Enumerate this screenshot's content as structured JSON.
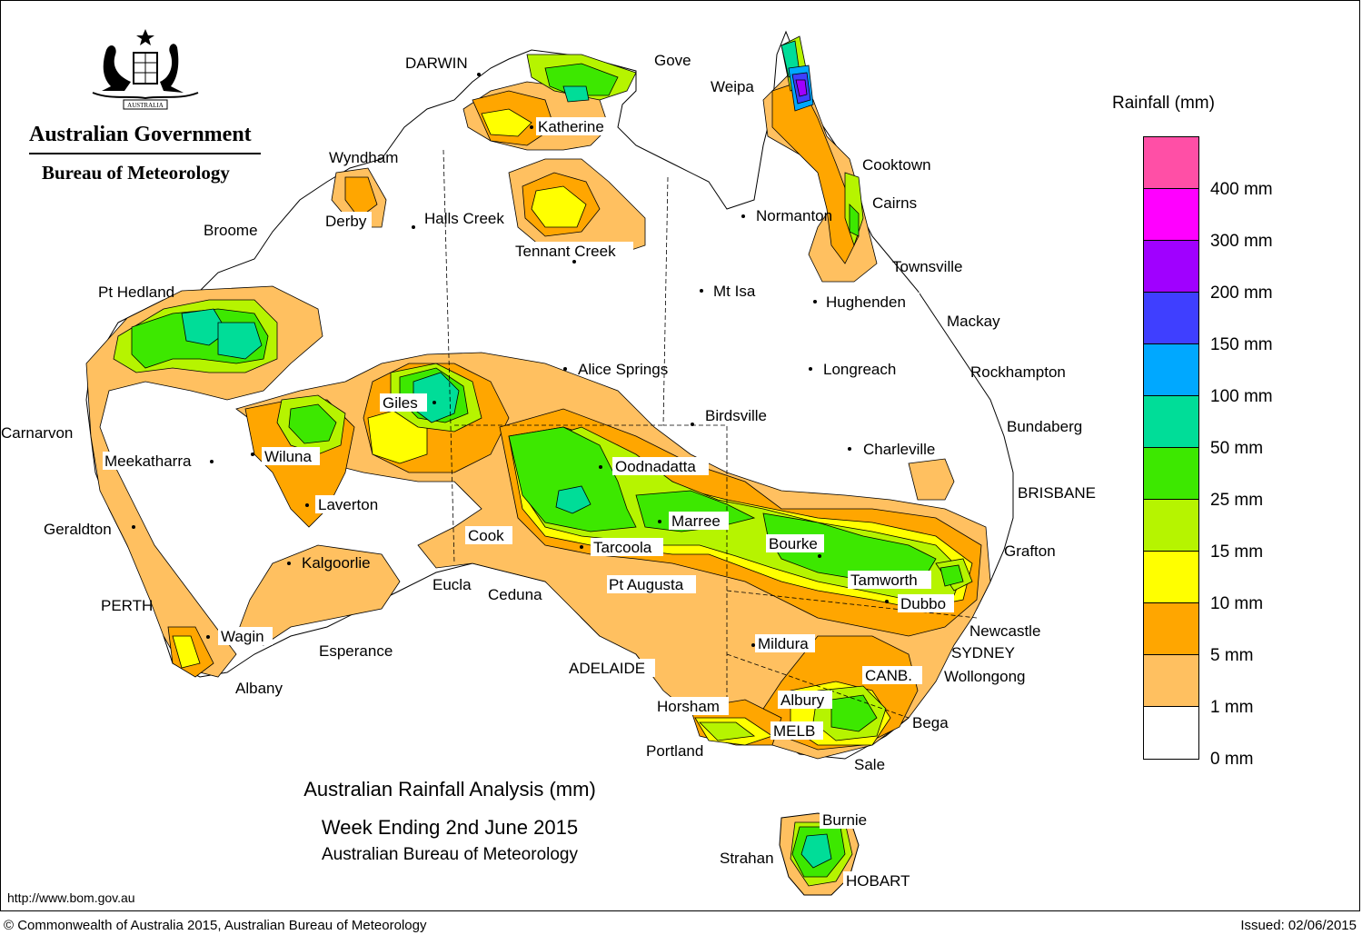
{
  "title": {
    "line1": "Australian Rainfall Analysis (mm)",
    "line2": "Week Ending 2nd June 2015",
    "line3": "Australian Bureau of Meteorology"
  },
  "header": {
    "government": "Australian Government",
    "bureau": "Bureau of Meteorology",
    "crest_text": "AUSTRALIA"
  },
  "legend": {
    "title": "Rainfall (mm)",
    "swatches": [
      {
        "color": "#ff4fa6"
      },
      {
        "color": "#ff00ff"
      },
      {
        "color": "#a000ff"
      },
      {
        "color": "#3f3fff"
      },
      {
        "color": "#00a8ff"
      },
      {
        "color": "#00dd98"
      },
      {
        "color": "#3de800"
      },
      {
        "color": "#b6f400"
      },
      {
        "color": "#ffff00"
      },
      {
        "color": "#ffa600"
      },
      {
        "color": "#ffc060"
      },
      {
        "color": "#ffffff"
      }
    ],
    "labels": [
      "400 mm",
      "300 mm",
      "200 mm",
      "150 mm",
      "100 mm",
      "50 mm",
      "25 mm",
      "15 mm",
      "10 mm",
      "5 mm",
      "1 mm",
      "0 mm"
    ]
  },
  "places": {
    "darwin": "DARWIN",
    "gove": "Gove",
    "weipa": "Weipa",
    "katherine": "Katherine",
    "wyndham": "Wyndham",
    "cooktown": "Cooktown",
    "cairns": "Cairns",
    "derby": "Derby",
    "halls_creek": "Halls Creek",
    "normanton": "Normanton",
    "broome": "Broome",
    "tennant_creek": "Tennant Creek",
    "townsville": "Townsville",
    "pt_hedland": "Pt Hedland",
    "mt_isa": "Mt Isa",
    "hughenden": "Hughenden",
    "mackay": "Mackay",
    "alice_springs": "Alice Springs",
    "longreach": "Longreach",
    "rockhampton": "Rockhampton",
    "giles": "Giles",
    "birdsville": "Birdsville",
    "bundaberg": "Bundaberg",
    "carnarvon": "Carnarvon",
    "meekatharra": "Meekatharra",
    "wiluna": "Wiluna",
    "charleville": "Charleville",
    "oodnadatta": "Oodnadatta",
    "brisbane": "BRISBANE",
    "laverton": "Laverton",
    "marree": "Marree",
    "geraldton": "Geraldton",
    "cook": "Cook",
    "tarcoola": "Tarcoola",
    "bourke": "Bourke",
    "grafton": "Grafton",
    "kalgoorlie": "Kalgoorlie",
    "tamworth": "Tamworth",
    "eucla": "Eucla",
    "ceduna": "Ceduna",
    "pt_augusta": "Pt Augusta",
    "perth": "PERTH",
    "dubbo": "Dubbo",
    "newcastle": "Newcastle",
    "wagin": "Wagin",
    "mildura": "Mildura",
    "sydney": "SYDNEY",
    "esperance": "Esperance",
    "adelaide": "ADELAIDE",
    "canberra": "CANB.",
    "wollongong": "Wollongong",
    "albany": "Albany",
    "horsham": "Horsham",
    "albury": "Albury",
    "bega": "Bega",
    "melbourne": "MELB",
    "portland": "Portland",
    "sale": "Sale",
    "burnie": "Burnie",
    "strahan": "Strahan",
    "hobart": "HOBART"
  },
  "footer": {
    "url": "http://www.bom.gov.au",
    "copyright": "© Commonwealth of Australia 2015, Australian Bureau of Meteorology",
    "issued": "Issued: 02/06/2015"
  }
}
